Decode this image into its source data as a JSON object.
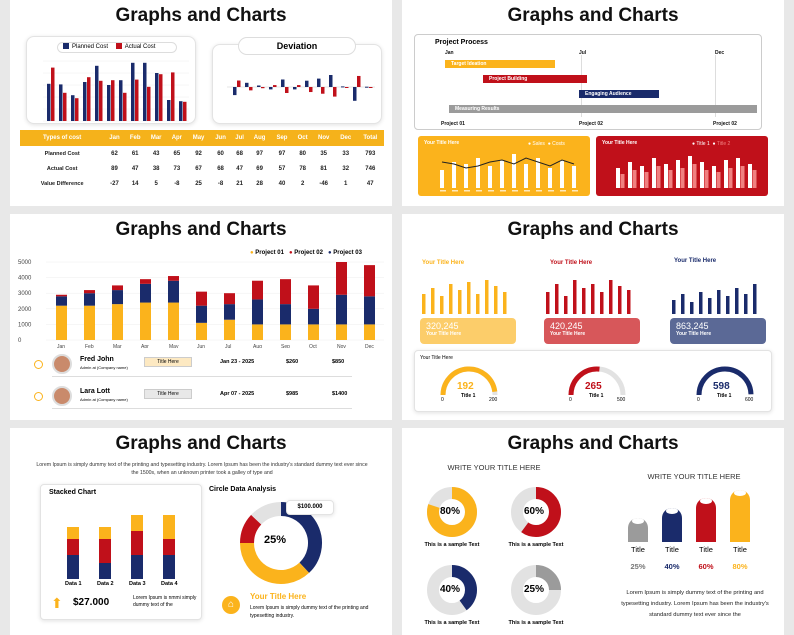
{
  "slide_title": "Graphs and Charts",
  "colors": {
    "blue": "#1a2b6b",
    "red": "#c0101a",
    "yellow": "#fbb31c",
    "gray": "#9b9b9b",
    "lightgray": "#e2e2e2"
  },
  "s1": {
    "legend_planned": "Planned Cost",
    "legend_actual": "Actual Cost",
    "deviation_title": "Deviation",
    "table": {
      "headers": [
        "Types of cost",
        "Jan",
        "Feb",
        "Mar",
        "Apr",
        "May",
        "Jun",
        "Jul",
        "Aug",
        "Sep",
        "Oct",
        "Nov",
        "Dec",
        "Total"
      ],
      "rows": [
        {
          "label": "Planned Cost",
          "values": [
            "62",
            "61",
            "43",
            "65",
            "92",
            "60",
            "68",
            "97",
            "97",
            "80",
            "35",
            "33",
            "793"
          ]
        },
        {
          "label": "Actual Cost",
          "values": [
            "89",
            "47",
            "38",
            "73",
            "67",
            "68",
            "47",
            "69",
            "57",
            "78",
            "81",
            "32",
            "746"
          ]
        },
        {
          "label": "Value Difference",
          "values": [
            "-27",
            "14",
            "5",
            "-8",
            "25",
            "-8",
            "21",
            "28",
            "40",
            "2",
            "-46",
            "1",
            "47"
          ]
        }
      ]
    },
    "chart_data": {
      "type": "bar",
      "categories": [
        "Jan",
        "Feb",
        "Mar",
        "Apr",
        "May",
        "Jun",
        "Jul",
        "Aug",
        "Sep",
        "Oct",
        "Nov",
        "Dec"
      ],
      "series": [
        {
          "name": "Planned Cost",
          "values": [
            62,
            61,
            43,
            65,
            92,
            60,
            68,
            97,
            97,
            80,
            35,
            33
          ]
        },
        {
          "name": "Actual Cost",
          "values": [
            89,
            47,
            38,
            73,
            67,
            68,
            47,
            69,
            57,
            78,
            81,
            32
          ]
        }
      ]
    }
  },
  "s2": {
    "process_title": "Project Process",
    "months": [
      "Jan",
      "Jul",
      "Dec"
    ],
    "tasks": [
      {
        "label": "Target Ideation",
        "color": "#fbb31c"
      },
      {
        "label": "Project Building",
        "color": "#c0101a"
      },
      {
        "label": "Engaging Audience",
        "color": "#1a2b6b"
      },
      {
        "label": "Measuring Results",
        "color": "#9b9b9b"
      }
    ],
    "milestones": [
      "Project 01",
      "Project 02",
      "Project 02"
    ],
    "panel1": {
      "title": "Your Title Here",
      "legend1": "Sales",
      "legend2": "Costs"
    },
    "panel2": {
      "title": "Your Title Here",
      "legend1": "Title 1",
      "legend2": "Title 2"
    }
  },
  "s3": {
    "legend": [
      "Project 01",
      "Project 02",
      "Project 03"
    ],
    "yticks": [
      "5000",
      "4000",
      "3000",
      "2000",
      "1000",
      "0"
    ],
    "chart_data": {
      "type": "bar",
      "categories": [
        "Jan",
        "Feb",
        "Mar",
        "Apr",
        "May",
        "Jun",
        "Jul",
        "Aug",
        "Sep",
        "Oct",
        "Nov",
        "Dec"
      ],
      "series": [
        {
          "name": "Project 01",
          "values": [
            2200,
            2200,
            2300,
            2400,
            2400,
            1100,
            1300,
            1000,
            1000,
            1000,
            1000,
            1000
          ]
        },
        {
          "name": "Project 03",
          "values": [
            600,
            800,
            900,
            1200,
            1400,
            1100,
            1000,
            1600,
            1300,
            1000,
            1900,
            1800
          ]
        },
        {
          "name": "Project 02",
          "values": [
            100,
            200,
            300,
            300,
            300,
            900,
            700,
            1200,
            1600,
            1500,
            2100,
            2000
          ]
        }
      ],
      "ylim": [
        0,
        5000
      ]
    },
    "people": [
      {
        "name": "Fred John",
        "role": "Admin at (Company name)",
        "tag": "Title Here",
        "date": "Jan 23 - 2025",
        "a": "$260",
        "b": "$850"
      },
      {
        "name": "Lara Lott",
        "role": "Admin at (Company name)",
        "tag": "Title Here",
        "date": "Apr 07 - 2025",
        "a": "$985",
        "b": "$1400"
      }
    ]
  },
  "s4": {
    "col_titles": [
      "Your Title Here",
      "Your Title Here",
      "Your Title Here"
    ],
    "kpis": [
      {
        "value": "320,245",
        "sub": "Your Title Here"
      },
      {
        "value": "420,245",
        "sub": "Your Title Here"
      },
      {
        "value": "863,245",
        "sub": "Your Title Here"
      }
    ],
    "gauge_panel_title": "Your Title Here",
    "gauges": [
      {
        "value": "192",
        "label": "Title 1",
        "min": "0",
        "max": "200"
      },
      {
        "value": "265",
        "label": "Title 1",
        "min": "0",
        "max": "500"
      },
      {
        "value": "598",
        "label": "Title 1",
        "min": "0",
        "max": "600"
      }
    ]
  },
  "s5": {
    "intro": "Lorem Ipsum is simply dummy text of the printing and typesetting industry. Lorem Ipsum has been the industry's standard dummy text ever since the 1500s, when an unknown printer took a galley of type and",
    "stacked_title": "Stacked Chart",
    "stacked_labels": [
      "Data 1",
      "Data 2",
      "Data 3",
      "Data 4"
    ],
    "stacked_data": {
      "type": "bar",
      "categories": [
        "Data 1",
        "Data 2",
        "Data 3",
        "Data 4"
      ],
      "series": [
        {
          "values": [
            30,
            20,
            30,
            30
          ]
        },
        {
          "values": [
            20,
            30,
            30,
            20
          ]
        },
        {
          "values": [
            15,
            15,
            20,
            30
          ]
        }
      ]
    },
    "amount": "$27.000",
    "amount_text": "Lorem Ipsum is nmmi simply dummy text of the",
    "circle_title": "Circle Data Analysis",
    "callout": "$100.000",
    "donut_pct": "25%",
    "donut_data": {
      "type": "pie",
      "values": [
        {
          "name": "blue",
          "value": 38
        },
        {
          "name": "yellow",
          "value": 37
        },
        {
          "name": "red",
          "value": 12
        },
        {
          "name": "gray",
          "value": 13
        }
      ]
    },
    "foot_title": "Your Title Here",
    "foot_text": "Lorem Ipsum is simply dummy text of the printing and typesetting industry."
  },
  "s6": {
    "heading1": "WRITE YOUR TITLE HERE",
    "heading2": "WRITE YOUR TITLE HERE",
    "donuts": [
      {
        "pct": "80%",
        "value": 80,
        "color": "#fbb31c",
        "caption": "This is a sample Text"
      },
      {
        "pct": "60%",
        "value": 60,
        "color": "#c0101a",
        "caption": "This is a sample Text"
      },
      {
        "pct": "40%",
        "value": 40,
        "color": "#1a2b6b",
        "caption": "This is a sample Text"
      },
      {
        "pct": "25%",
        "value": 25,
        "color": "#9b9b9b",
        "caption": "This is a sample Text"
      }
    ],
    "cylinders": [
      {
        "title": "Title",
        "pct": "25%",
        "color": "#9b9b9b"
      },
      {
        "title": "Title",
        "pct": "40%",
        "color": "#1a2b6b"
      },
      {
        "title": "Title",
        "pct": "60%",
        "color": "#c0101a"
      },
      {
        "title": "Title",
        "pct": "80%",
        "color": "#fbb31c"
      }
    ],
    "body": "Lorem Ipsum is simply dummy text of the printing and typesetting industry. Lorem Ipsum has been the industry's standard dummy text ever since the"
  }
}
